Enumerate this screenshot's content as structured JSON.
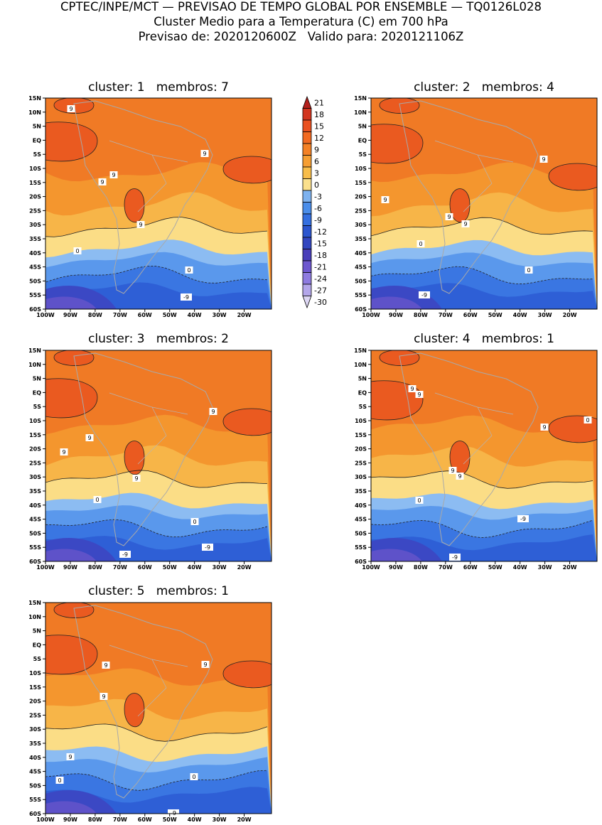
{
  "header": {
    "line1": "CPTEC/INPE/MCT — PREVISAO DE TEMPO GLOBAL POR ENSEMBLE — TQ0126L028",
    "line2": "Cluster Medio para a Temperatura (C) em 700 hPa",
    "line3": "Previsao de: 2020120600Z   Valido para: 2020121106Z"
  },
  "axes": {
    "lat_labels": [
      "15N",
      "10N",
      "5N",
      "EQ",
      "5S",
      "10S",
      "15S",
      "20S",
      "25S",
      "30S",
      "35S",
      "40S",
      "45S",
      "50S",
      "55S",
      "60S"
    ],
    "lon_labels": [
      "100W",
      "90W",
      "80W",
      "70W",
      "60W",
      "50W",
      "40W",
      "30W",
      "20W"
    ]
  },
  "colorbar": {
    "labels": [
      "21",
      "18",
      "15",
      "12",
      "9",
      "6",
      "3",
      "0",
      "-3",
      "-6",
      "-9",
      "-12",
      "-15",
      "-18",
      "-21",
      "-24",
      "-27",
      "-30"
    ],
    "colors": [
      "#b3201c",
      "#d2351f",
      "#ea5120",
      "#f26a21",
      "#f48125",
      "#f69e32",
      "#f8bd4a",
      "#fbe08c",
      "#7eb2ef",
      "#4b8eea",
      "#346fe0",
      "#2b55cf",
      "#3246c0",
      "#4a3fba",
      "#6d57cf",
      "#8e7be0",
      "#b3a6ea",
      "#dcd6f3"
    ]
  },
  "panels": [
    {
      "title": "cluster: 1   membros: 7",
      "labels": [
        "9",
        "9",
        "9",
        "9",
        "9",
        "0",
        "0",
        "-9"
      ]
    },
    {
      "title": "cluster: 2   membros: 4",
      "labels": [
        "9",
        "9",
        "9",
        "9",
        "0",
        "0",
        "-9"
      ]
    },
    {
      "title": "cluster: 3   membros: 2",
      "labels": [
        "9",
        "9",
        "9",
        "9",
        "0",
        "0",
        "-9",
        "-9"
      ]
    },
    {
      "title": "cluster: 4   membros: 1",
      "labels": [
        "9",
        "9",
        "9",
        "9",
        "9",
        "0",
        "0",
        "-9",
        "-9"
      ]
    },
    {
      "title": "cluster: 5   membros: 1",
      "labels": [
        "9",
        "9",
        "9",
        "9",
        "0",
        "0",
        "-9",
        "-9"
      ]
    }
  ]
}
